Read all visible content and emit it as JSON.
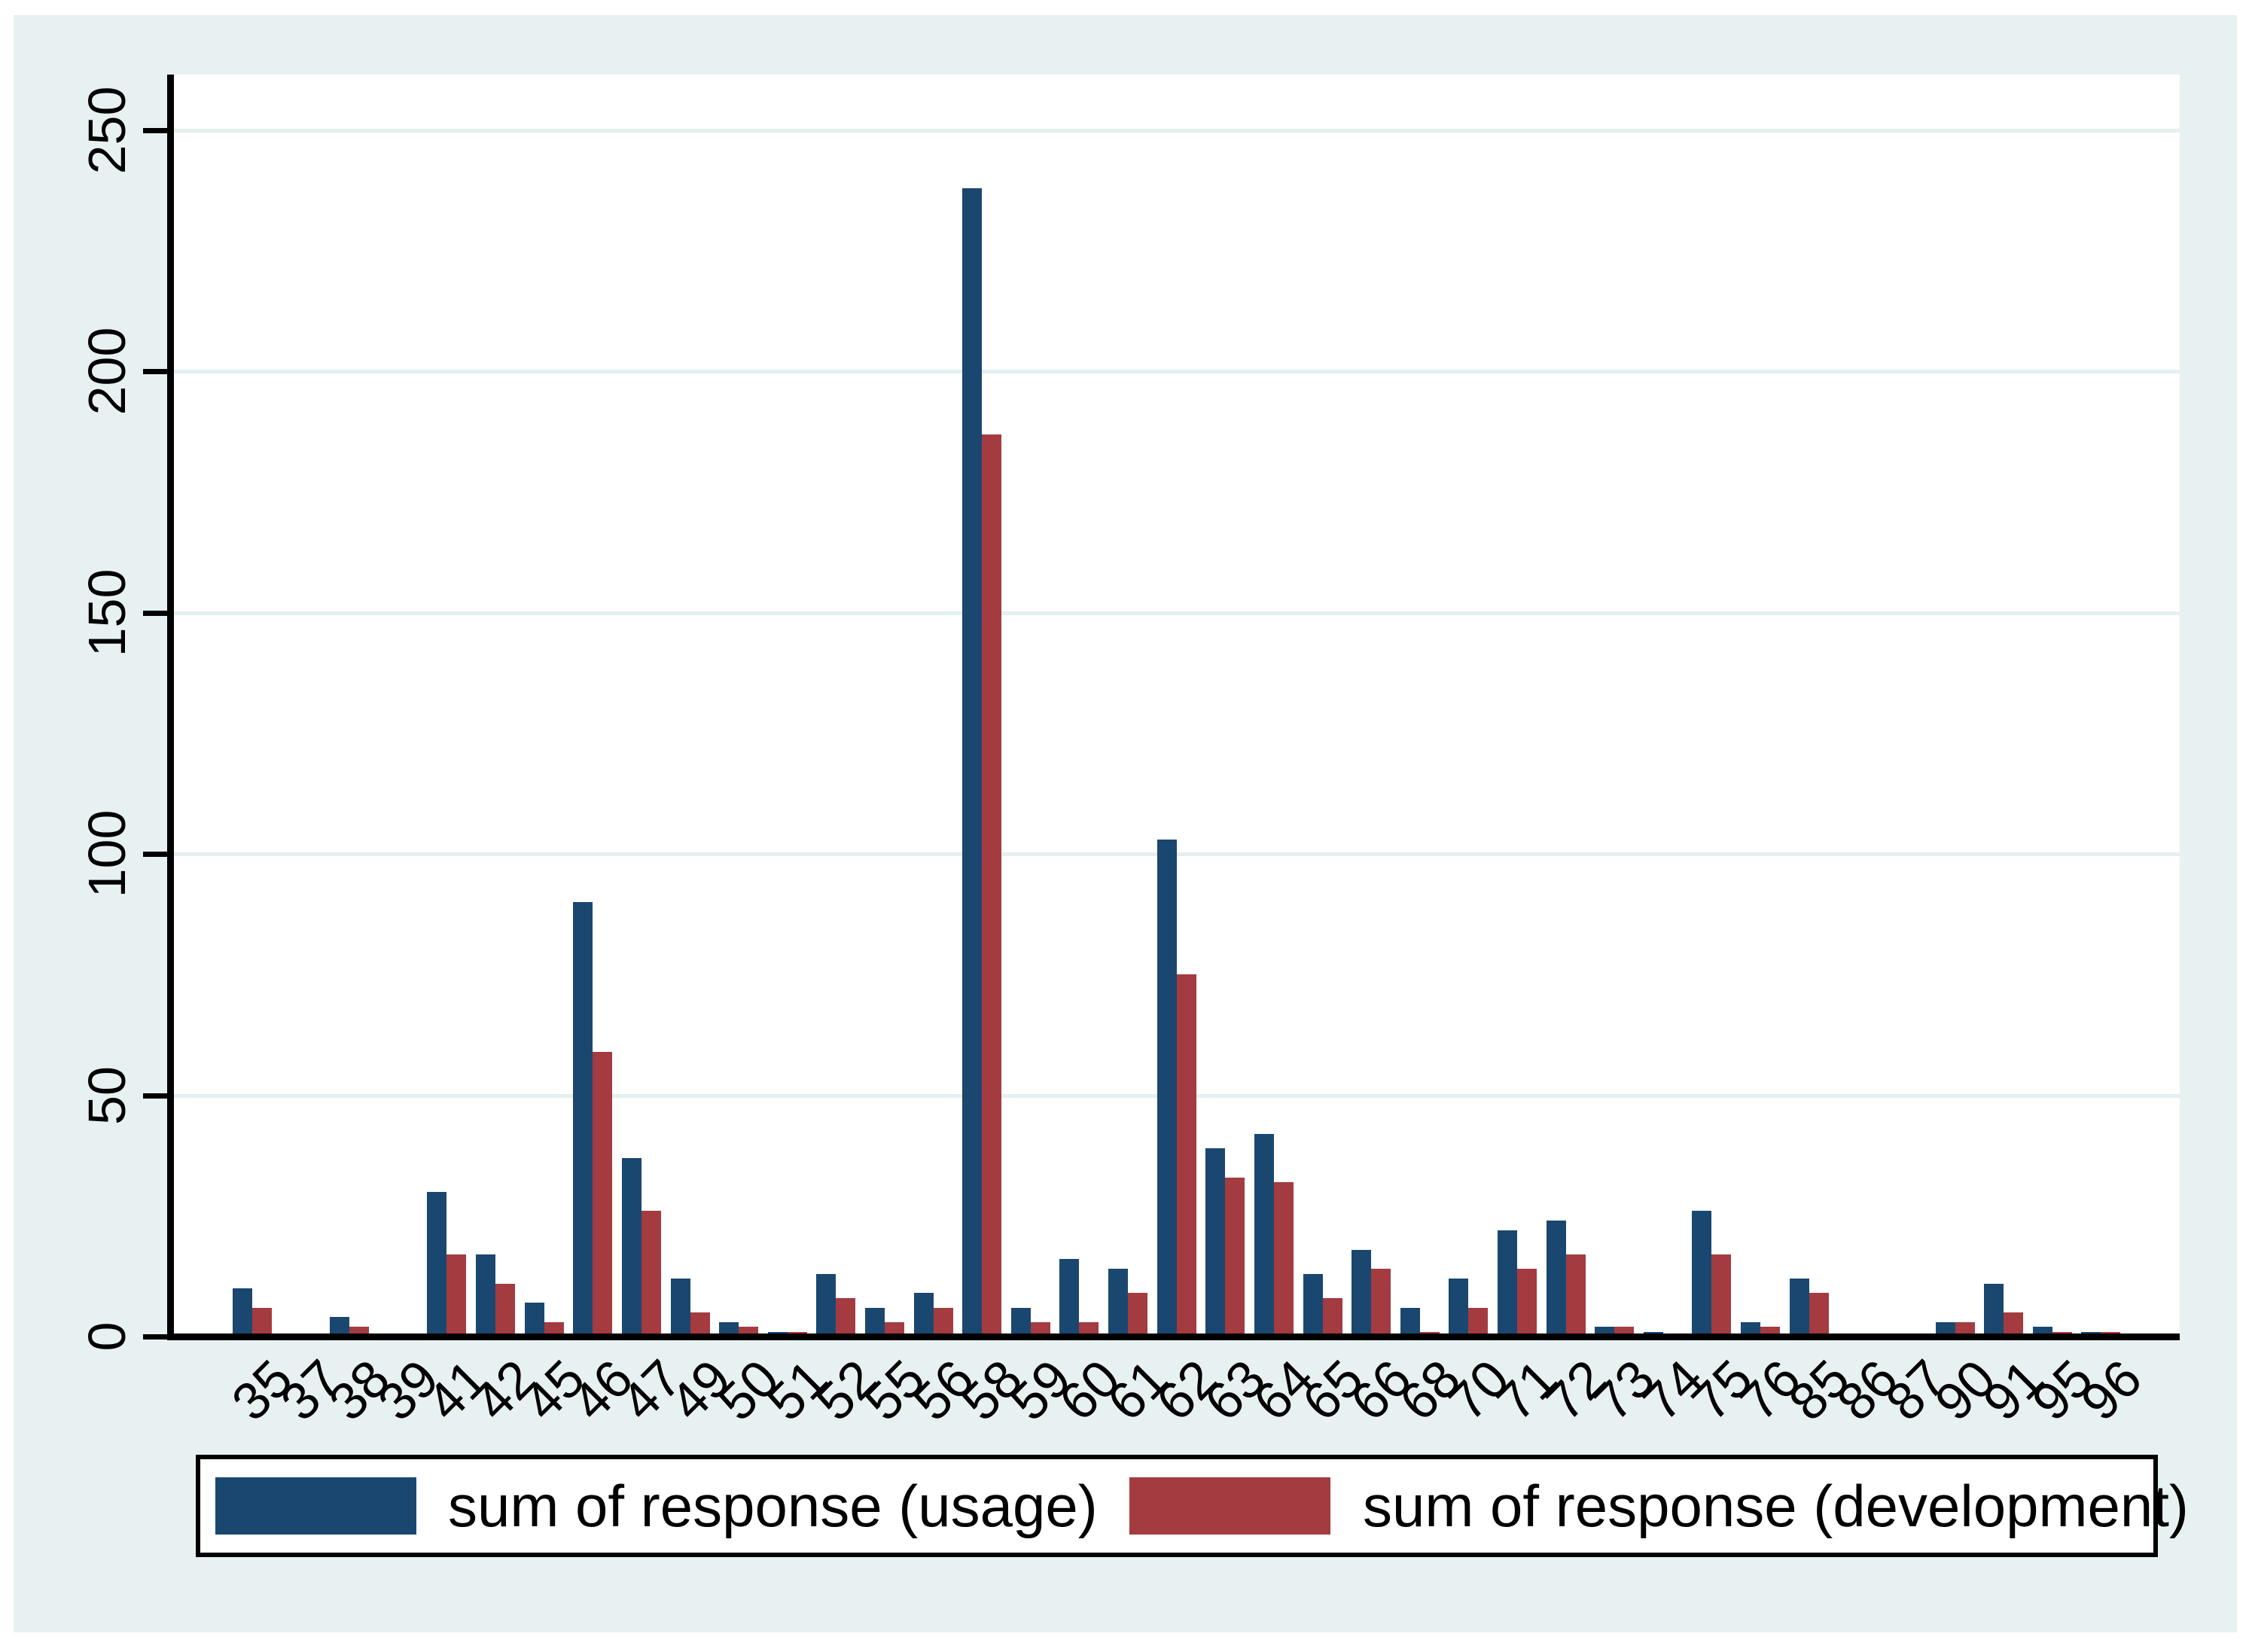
{
  "chart_data": {
    "type": "bar",
    "title": "",
    "xlabel": "",
    "ylabel": "",
    "categories": [
      "35",
      "37",
      "38",
      "39",
      "41",
      "42",
      "45",
      "46",
      "47",
      "49",
      "50",
      "51",
      "52",
      "55",
      "56",
      "58",
      "59",
      "60",
      "61",
      "62",
      "63",
      "64",
      "65",
      "66",
      "68",
      "70",
      "71",
      "72",
      "73",
      "74",
      "75",
      "76",
      "85",
      "86",
      "87",
      "90",
      "91",
      "95",
      "96"
    ],
    "series": [
      {
        "name": "sum of response (usage)",
        "color": "#1a476f",
        "values": [
          10,
          0,
          4,
          0,
          30,
          17,
          7,
          90,
          37,
          12,
          3,
          1,
          13,
          6,
          9,
          238,
          6,
          16,
          14,
          103,
          39,
          42,
          13,
          18,
          6,
          12,
          22,
          24,
          2,
          1,
          26,
          3,
          12,
          0,
          0,
          3,
          11,
          2,
          1
        ]
      },
      {
        "name": "sum of response (development)",
        "color": "#a33b40",
        "values": [
          6,
          0,
          2,
          0,
          17,
          11,
          3,
          59,
          26,
          5,
          2,
          1,
          8,
          3,
          6,
          187,
          3,
          3,
          9,
          75,
          33,
          32,
          8,
          14,
          1,
          6,
          14,
          17,
          2,
          0,
          17,
          2,
          9,
          0,
          0,
          3,
          5,
          1,
          1
        ]
      }
    ],
    "ylim": [
      0,
      260
    ],
    "yticks": [
      0,
      50,
      100,
      150,
      200,
      250
    ],
    "grid": "horizontal",
    "legend_position": "bottom",
    "colors": {
      "canvas_background": "#e8f1f1",
      "plot_background": "#ffffff",
      "gridline": "#e4efef",
      "axis": "#000000",
      "text": "#000000"
    }
  }
}
